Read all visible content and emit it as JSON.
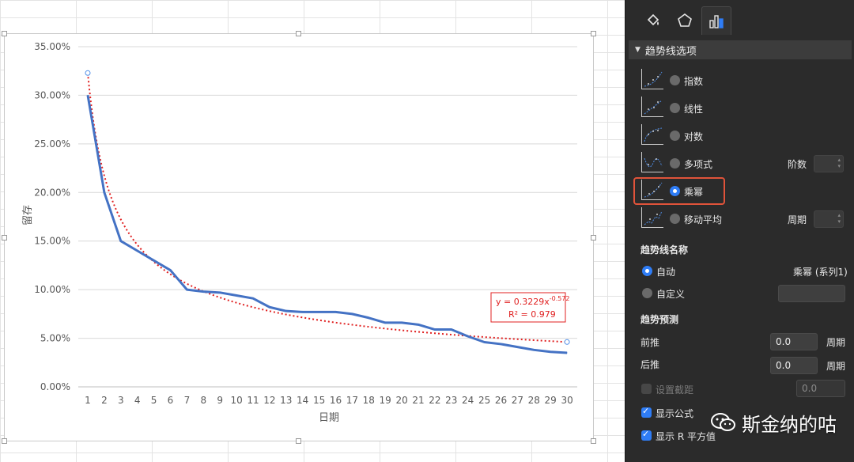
{
  "chart_data": {
    "type": "line",
    "x": [
      1,
      2,
      3,
      4,
      5,
      6,
      7,
      8,
      9,
      10,
      11,
      12,
      13,
      14,
      15,
      16,
      17,
      18,
      19,
      20,
      21,
      22,
      23,
      24,
      25,
      26,
      27,
      28,
      29,
      30
    ],
    "series": [
      {
        "name": "",
        "values": [
          0.3,
          0.2,
          0.15,
          0.14,
          0.13,
          0.12,
          0.1,
          0.098,
          0.097,
          0.094,
          0.091,
          0.082,
          0.078,
          0.077,
          0.077,
          0.077,
          0.075,
          0.071,
          0.066,
          0.066,
          0.064,
          0.059,
          0.059,
          0.052,
          0.046,
          0.044,
          0.041,
          0.038,
          0.036,
          0.035
        ],
        "color": "#4472c4"
      }
    ],
    "trendline": {
      "type": "power",
      "coefficient": 0.3229,
      "exponent": -0.572,
      "r_squared": 0.979,
      "color": "#e02020",
      "equation_label": "y = 0.3229x",
      "exponent_label": "-0.572",
      "r2_label": "R² = 0.979"
    },
    "title": "",
    "xlabel": "日期",
    "ylabel": "留存",
    "ylim": [
      0,
      0.35
    ],
    "y_ticks": [
      "0.00%",
      "5.00%",
      "10.00%",
      "15.00%",
      "20.00%",
      "25.00%",
      "30.00%",
      "35.00%"
    ],
    "x_ticks": [
      "1",
      "2",
      "3",
      "4",
      "5",
      "6",
      "7",
      "8",
      "9",
      "10",
      "11",
      "12",
      "13",
      "14",
      "15",
      "16",
      "17",
      "18",
      "19",
      "20",
      "21",
      "22",
      "23",
      "24",
      "25",
      "26",
      "27",
      "28",
      "29",
      "30"
    ],
    "grid": true,
    "legend": "none"
  },
  "panel": {
    "tabs": [
      {
        "icon": "fill-bucket-icon"
      },
      {
        "icon": "pentagon-icon"
      },
      {
        "icon": "bar-chart-icon"
      }
    ],
    "section_title": "趋势线选项",
    "types": [
      {
        "label": "指数",
        "selected": false
      },
      {
        "label": "线性",
        "selected": false
      },
      {
        "label": "对数",
        "selected": false
      },
      {
        "label": "多项式",
        "selected": false,
        "extra_label": "阶数"
      },
      {
        "label": "乘幂",
        "selected": true
      },
      {
        "label": "移动平均",
        "selected": false,
        "extra_label": "周期"
      }
    ],
    "name_section": "趋势线名称",
    "name_auto": "自动",
    "name_auto_value": "乘幂 (系列1)",
    "name_custom": "自定义",
    "forecast_section": "趋势预测",
    "forward_label": "前推",
    "forward_value": "0.0",
    "forward_unit": "周期",
    "backward_label": "后推",
    "backward_value": "0.0",
    "backward_unit": "周期",
    "intercept_label": "设置截距",
    "intercept_value": "0.0",
    "show_equation": "显示公式",
    "show_r2": "显示 R 平方值"
  },
  "watermark": "斯金纳的咕",
  "colors": {
    "highlight": "#e0533a",
    "accent": "#2f7df6"
  }
}
